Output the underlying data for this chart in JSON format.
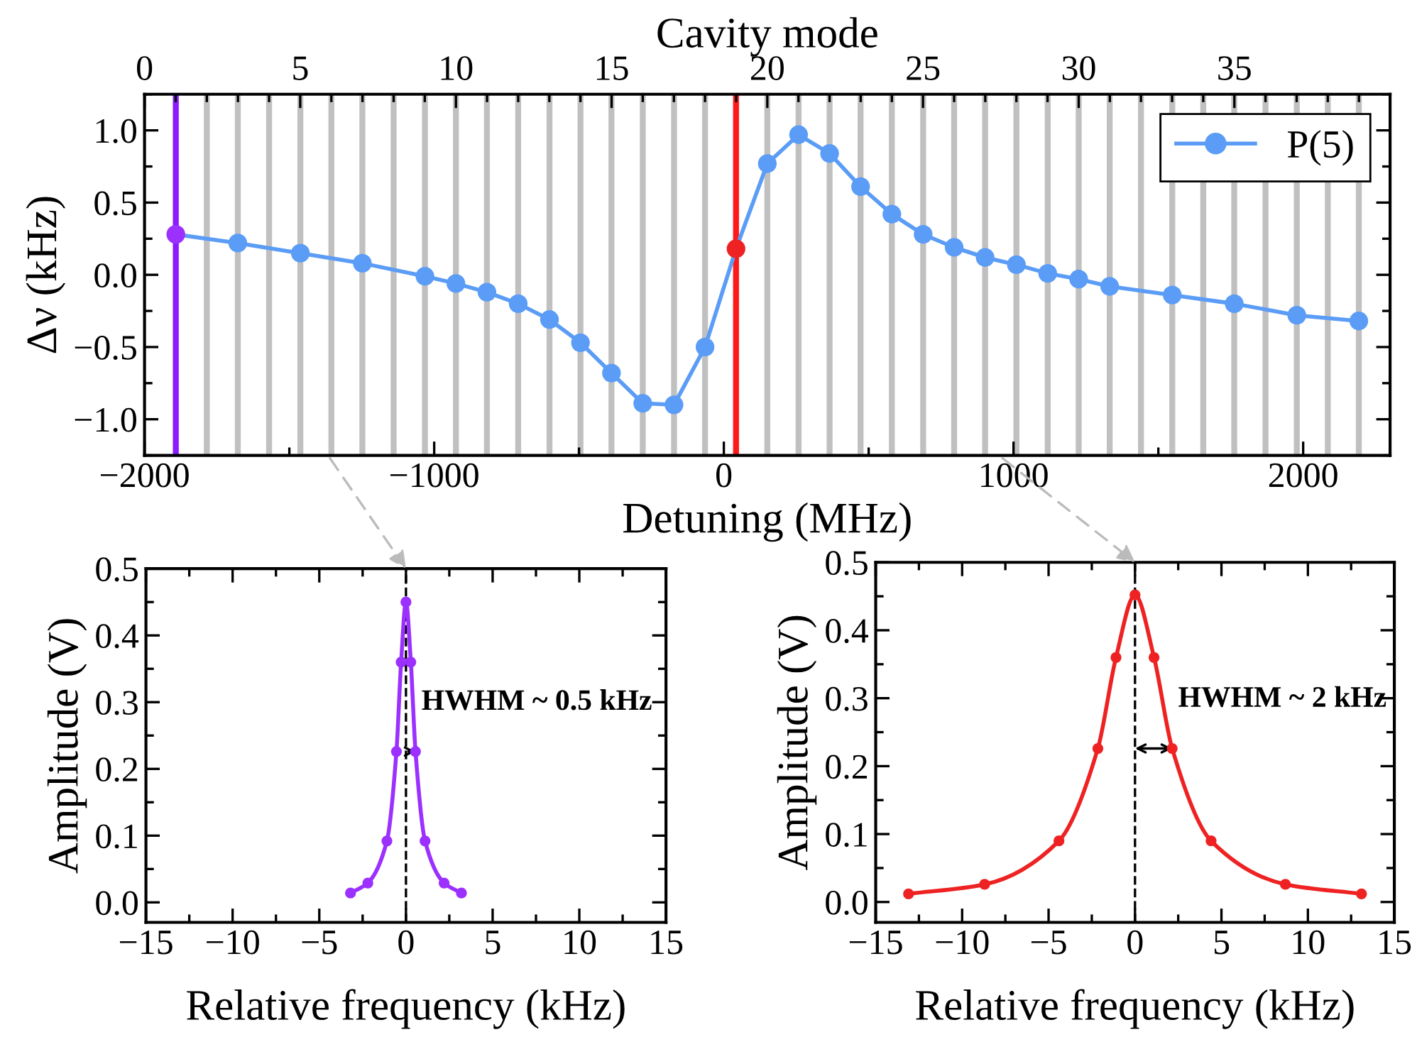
{
  "chart_data": [
    {
      "type": "line",
      "xlabel": "Detuning (MHz)",
      "x2label": "Cavity mode",
      "ylabel": "Δν (kHz)",
      "xlim": [
        -2000,
        2300
      ],
      "xticks": [
        {
          "value": -2000,
          "label": "−2000"
        },
        {
          "value": -1000,
          "label": "−1000"
        },
        0,
        1000,
        2000
      ],
      "x2lim": [
        0,
        40
      ],
      "x2ticks": [
        0,
        5,
        10,
        15,
        20,
        25,
        30,
        35
      ],
      "ylim": [
        -1.25,
        1.25
      ],
      "yticks": [
        {
          "value": -1.0,
          "label": "−1.0"
        },
        {
          "value": -0.5,
          "label": "−0.5"
        },
        {
          "value": 0.0,
          "label": "0.0"
        },
        {
          "value": 0.5,
          "label": "0.5"
        },
        {
          "value": 1.0,
          "label": "1.0"
        }
      ],
      "legend": "top right",
      "marker": "circle",
      "line_style": "solid",
      "grid": false,
      "series": [
        {
          "name": "P(5)",
          "color": "#5b9cf6",
          "x": [
            -1892,
            -1678,
            -1462,
            -1248,
            -1032,
            -925,
            -818,
            -710,
            -602,
            -495,
            -388,
            -280,
            -172,
            -65,
            42,
            150,
            258,
            365,
            472,
            580,
            688,
            795,
            902,
            1010,
            1118,
            1225,
            1332,
            1548,
            1762,
            1978,
            2192
          ],
          "values": [
            0.28,
            0.22,
            0.15,
            0.08,
            -0.01,
            -0.06,
            -0.12,
            -0.2,
            -0.31,
            -0.47,
            -0.68,
            -0.89,
            -0.9,
            -0.5,
            0.18,
            0.77,
            0.97,
            0.84,
            0.61,
            0.42,
            0.28,
            0.19,
            0.12,
            0.07,
            0.01,
            -0.03,
            -0.08,
            -0.14,
            -0.2,
            -0.28,
            -0.32
          ],
          "colors": [
            "#9b30ff",
            "#5b9cf6",
            "#5b9cf6",
            "#5b9cf6",
            "#5b9cf6",
            "#5b9cf6",
            "#5b9cf6",
            "#5b9cf6",
            "#5b9cf6",
            "#5b9cf6",
            "#5b9cf6",
            "#5b9cf6",
            "#5b9cf6",
            "#5b9cf6",
            "#ee2222",
            "#5b9cf6",
            "#5b9cf6",
            "#5b9cf6",
            "#5b9cf6",
            "#5b9cf6",
            "#5b9cf6",
            "#5b9cf6",
            "#5b9cf6",
            "#5b9cf6",
            "#5b9cf6",
            "#5b9cf6",
            "#5b9cf6",
            "#5b9cf6",
            "#5b9cf6",
            "#5b9cf6",
            "#5b9cf6"
          ]
        }
      ],
      "ref_lines": [
        {
          "axis": "x",
          "value": -1785,
          "color": "#c0c0c0"
        },
        {
          "axis": "x",
          "value": -1678,
          "color": "#c0c0c0"
        },
        {
          "axis": "x",
          "value": -1570,
          "color": "#c0c0c0"
        },
        {
          "axis": "x",
          "value": -1462,
          "color": "#c0c0c0"
        },
        {
          "axis": "x",
          "value": -1355,
          "color": "#c0c0c0"
        },
        {
          "axis": "x",
          "value": -1248,
          "color": "#c0c0c0"
        },
        {
          "axis": "x",
          "value": -1140,
          "color": "#c0c0c0"
        },
        {
          "axis": "x",
          "value": -1032,
          "color": "#c0c0c0"
        },
        {
          "axis": "x",
          "value": -925,
          "color": "#c0c0c0"
        },
        {
          "axis": "x",
          "value": -818,
          "color": "#c0c0c0"
        },
        {
          "axis": "x",
          "value": -710,
          "color": "#c0c0c0"
        },
        {
          "axis": "x",
          "value": -602,
          "color": "#c0c0c0"
        },
        {
          "axis": "x",
          "value": -495,
          "color": "#c0c0c0"
        },
        {
          "axis": "x",
          "value": -388,
          "color": "#c0c0c0"
        },
        {
          "axis": "x",
          "value": -280,
          "color": "#c0c0c0"
        },
        {
          "axis": "x",
          "value": -172,
          "color": "#c0c0c0"
        },
        {
          "axis": "x",
          "value": -65,
          "color": "#c0c0c0"
        },
        {
          "axis": "x",
          "value": 150,
          "color": "#c0c0c0"
        },
        {
          "axis": "x",
          "value": 258,
          "color": "#c0c0c0"
        },
        {
          "axis": "x",
          "value": 365,
          "color": "#c0c0c0"
        },
        {
          "axis": "x",
          "value": 472,
          "color": "#c0c0c0"
        },
        {
          "axis": "x",
          "value": 580,
          "color": "#c0c0c0"
        },
        {
          "axis": "x",
          "value": 688,
          "color": "#c0c0c0"
        },
        {
          "axis": "x",
          "value": 795,
          "color": "#c0c0c0"
        },
        {
          "axis": "x",
          "value": 902,
          "color": "#c0c0c0"
        },
        {
          "axis": "x",
          "value": 1010,
          "color": "#c0c0c0"
        },
        {
          "axis": "x",
          "value": 1118,
          "color": "#c0c0c0"
        },
        {
          "axis": "x",
          "value": 1225,
          "color": "#c0c0c0"
        },
        {
          "axis": "x",
          "value": 1332,
          "color": "#c0c0c0"
        },
        {
          "axis": "x",
          "value": 1440,
          "color": "#c0c0c0"
        },
        {
          "axis": "x",
          "value": 1548,
          "color": "#c0c0c0"
        },
        {
          "axis": "x",
          "value": 1655,
          "color": "#c0c0c0"
        },
        {
          "axis": "x",
          "value": 1762,
          "color": "#c0c0c0"
        },
        {
          "axis": "x",
          "value": 1870,
          "color": "#c0c0c0"
        },
        {
          "axis": "x",
          "value": 1978,
          "color": "#c0c0c0"
        },
        {
          "axis": "x",
          "value": 2085,
          "color": "#c0c0c0"
        },
        {
          "axis": "x",
          "value": 2192,
          "color": "#c0c0c0"
        },
        {
          "axis": "x",
          "value": -1892,
          "color": "#8b1aff"
        },
        {
          "axis": "x",
          "value": 42,
          "color": "#ff1a1a"
        }
      ]
    },
    {
      "type": "line",
      "xlabel": "Relative frequency (kHz)",
      "ylabel": "Amplitude (V)",
      "xlim": [
        -15,
        15
      ],
      "xticks": [
        {
          "value": -15,
          "label": "−15"
        },
        {
          "value": -10,
          "label": "−10"
        },
        {
          "value": -5,
          "label": "−5"
        },
        0,
        5,
        10,
        15
      ],
      "ylim": [
        -0.03,
        0.5
      ],
      "yticks": [
        {
          "value": 0.0,
          "label": "0.0"
        },
        0.1,
        0.2,
        0.3,
        0.4,
        0.5
      ],
      "marker": "circle",
      "line_style": "solid",
      "grid": false,
      "series": [
        {
          "color": "#9b30ff",
          "x": [
            -3.2,
            -2.2,
            -1.1,
            -0.55,
            -0.28,
            0,
            0.28,
            0.55,
            1.1,
            2.2,
            3.2
          ],
          "values": [
            0.014,
            0.029,
            0.092,
            0.226,
            0.36,
            0.45,
            0.36,
            0.226,
            0.092,
            0.029,
            0.014
          ]
        }
      ],
      "ref_lines": [
        {
          "axis": "x",
          "value": 0,
          "color": "#000000",
          "line_style": "dashed"
        }
      ],
      "annotations": [
        {
          "text": "HWHM ~ 0.5 kHz",
          "x": 0.55,
          "y": 0.226
        }
      ]
    },
    {
      "type": "line",
      "xlabel": "Relative frequency (kHz)",
      "ylabel": "Amplitude (V)",
      "xlim": [
        -15,
        15
      ],
      "xticks": [
        {
          "value": -15,
          "label": "−15"
        },
        {
          "value": -10,
          "label": "−10"
        },
        {
          "value": -5,
          "label": "−5"
        },
        0,
        5,
        10,
        15
      ],
      "ylim": [
        -0.03,
        0.5
      ],
      "yticks": [
        {
          "value": 0.0,
          "label": "0.0"
        },
        0.1,
        0.2,
        0.3,
        0.4,
        0.5
      ],
      "marker": "circle",
      "line_style": "solid",
      "grid": false,
      "series": [
        {
          "color": "#ee2222",
          "x": [
            -13.1,
            -8.7,
            -4.4,
            -2.15,
            -1.1,
            0,
            1.1,
            2.15,
            4.4,
            8.7,
            13.1
          ],
          "values": [
            0.012,
            0.026,
            0.09,
            0.226,
            0.36,
            0.452,
            0.36,
            0.226,
            0.09,
            0.026,
            0.012
          ]
        }
      ],
      "ref_lines": [
        {
          "axis": "x",
          "value": 0,
          "color": "#000000",
          "line_style": "dashed"
        }
      ],
      "annotations": [
        {
          "text": "HWHM ~ 2 kHz",
          "x": 2.15,
          "y": 0.226
        }
      ]
    }
  ]
}
